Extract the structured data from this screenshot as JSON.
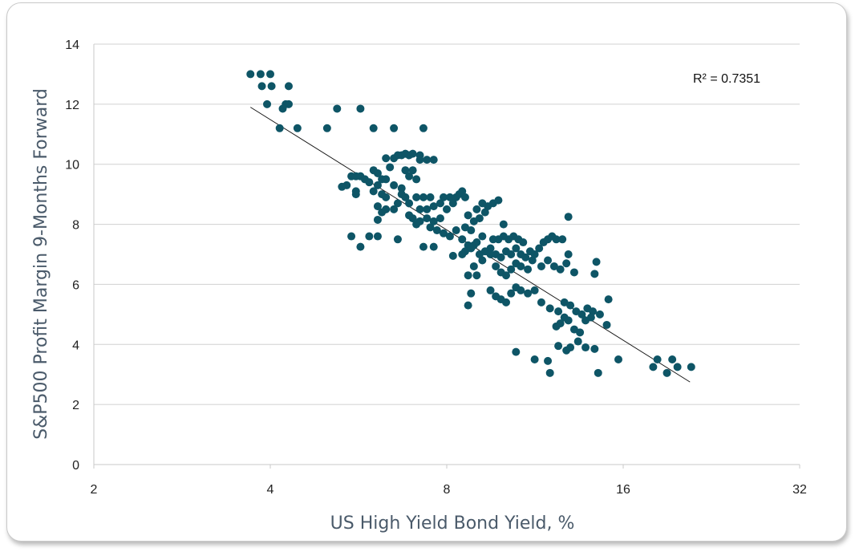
{
  "chart_data": {
    "type": "scatter",
    "xlabel": "US High Yield Bond Yield, %",
    "ylabel": "S&P500 Profit Margin 9-Months Forward",
    "x_scale": "log2",
    "xlim": [
      2,
      32
    ],
    "x_ticks": [
      2,
      4,
      8,
      16,
      32
    ],
    "x_tick_labels": [
      "2",
      "4",
      "8",
      "16",
      "32"
    ],
    "ylim": [
      0,
      14
    ],
    "y_ticks": [
      0,
      2,
      4,
      6,
      8,
      10,
      12,
      14
    ],
    "y_tick_labels": [
      "0",
      "2",
      "4",
      "6",
      "8",
      "10",
      "12",
      "14"
    ],
    "grid": "horizontal",
    "marker_color": "#0e5566",
    "trendline": {
      "x": [
        3.7,
        20.8
      ],
      "y": [
        11.9,
        2.75
      ]
    },
    "annotation": "R² = 0.7351",
    "points": [
      [
        3.7,
        13.0
      ],
      [
        3.85,
        13.0
      ],
      [
        4.0,
        13.0
      ],
      [
        3.87,
        12.6
      ],
      [
        4.02,
        12.6
      ],
      [
        4.3,
        12.6
      ],
      [
        3.95,
        12.0
      ],
      [
        4.25,
        12.0
      ],
      [
        4.3,
        12.0
      ],
      [
        4.2,
        11.85
      ],
      [
        4.15,
        11.2
      ],
      [
        4.45,
        11.2
      ],
      [
        5.0,
        11.2
      ],
      [
        5.2,
        11.85
      ],
      [
        5.7,
        11.85
      ],
      [
        6.0,
        11.2
      ],
      [
        6.5,
        11.2
      ],
      [
        7.3,
        11.2
      ],
      [
        5.5,
        9.6
      ],
      [
        5.6,
        9.6
      ],
      [
        5.7,
        9.6
      ],
      [
        5.8,
        9.5
      ],
      [
        5.9,
        9.4
      ],
      [
        5.4,
        9.3
      ],
      [
        5.3,
        9.25
      ],
      [
        5.6,
        9.0
      ],
      [
        5.6,
        9.1
      ],
      [
        6.0,
        9.8
      ],
      [
        6.1,
        9.7
      ],
      [
        6.2,
        9.5
      ],
      [
        6.3,
        10.2
      ],
      [
        6.5,
        10.2
      ],
      [
        6.6,
        10.3
      ],
      [
        6.7,
        10.3
      ],
      [
        6.8,
        10.35
      ],
      [
        6.9,
        10.3
      ],
      [
        7.0,
        10.35
      ],
      [
        7.2,
        10.3
      ],
      [
        7.4,
        10.15
      ],
      [
        7.6,
        10.15
      ],
      [
        7.2,
        10.15
      ],
      [
        6.4,
        9.9
      ],
      [
        6.8,
        9.8
      ],
      [
        7.0,
        9.8
      ],
      [
        6.9,
        9.6
      ],
      [
        7.1,
        9.5
      ],
      [
        6.3,
        9.5
      ],
      [
        6.5,
        9.3
      ],
      [
        6.7,
        9.2
      ],
      [
        6.1,
        9.3
      ],
      [
        6.0,
        9.1
      ],
      [
        6.2,
        9.0
      ],
      [
        6.3,
        8.9
      ],
      [
        6.1,
        8.6
      ],
      [
        6.3,
        8.5
      ],
      [
        6.2,
        8.4
      ],
      [
        6.5,
        8.5
      ],
      [
        6.6,
        8.7
      ],
      [
        6.7,
        9.0
      ],
      [
        6.8,
        8.9
      ],
      [
        6.9,
        8.7
      ],
      [
        7.1,
        8.9
      ],
      [
        7.3,
        8.9
      ],
      [
        7.5,
        8.9
      ],
      [
        7.2,
        8.5
      ],
      [
        7.4,
        8.5
      ],
      [
        7.6,
        8.6
      ],
      [
        7.8,
        8.7
      ],
      [
        7.9,
        8.9
      ],
      [
        8.1,
        8.9
      ],
      [
        8.3,
        8.9
      ],
      [
        8.4,
        9.0
      ],
      [
        8.5,
        9.1
      ],
      [
        8.6,
        8.9
      ],
      [
        8.2,
        8.7
      ],
      [
        8.0,
        8.5
      ],
      [
        7.8,
        8.2
      ],
      [
        7.6,
        8.1
      ],
      [
        7.4,
        8.2
      ],
      [
        7.2,
        8.1
      ],
      [
        7.0,
        8.2
      ],
      [
        6.9,
        8.3
      ],
      [
        7.1,
        8.0
      ],
      [
        7.5,
        7.9
      ],
      [
        7.7,
        7.8
      ],
      [
        7.9,
        7.7
      ],
      [
        8.1,
        7.6
      ],
      [
        8.3,
        7.8
      ],
      [
        8.5,
        7.5
      ],
      [
        8.7,
        7.3
      ],
      [
        8.6,
        7.1
      ],
      [
        8.5,
        7.0
      ],
      [
        8.8,
        7.2
      ],
      [
        8.9,
        7.3
      ],
      [
        9.1,
        7.0
      ],
      [
        9.3,
        7.1
      ],
      [
        9.5,
        7.2
      ],
      [
        9.7,
        7.0
      ],
      [
        9.9,
        6.9
      ],
      [
        10.1,
        7.1
      ],
      [
        10.3,
        7.0
      ],
      [
        10.5,
        7.2
      ],
      [
        10.7,
        7.0
      ],
      [
        10.9,
        6.9
      ],
      [
        11.1,
        7.1
      ],
      [
        11.3,
        7.0
      ],
      [
        11.5,
        7.2
      ],
      [
        11.7,
        7.4
      ],
      [
        11.9,
        7.5
      ],
      [
        12.1,
        7.6
      ],
      [
        12.3,
        7.5
      ],
      [
        12.6,
        7.5
      ],
      [
        12.9,
        7.0
      ],
      [
        10.2,
        7.5
      ],
      [
        10.4,
        7.6
      ],
      [
        10.6,
        7.5
      ],
      [
        10.8,
        7.4
      ],
      [
        10.0,
        7.6
      ],
      [
        9.8,
        7.5
      ],
      [
        9.6,
        7.5
      ],
      [
        9.2,
        7.6
      ],
      [
        9.0,
        7.4
      ],
      [
        8.8,
        7.8
      ],
      [
        8.6,
        7.9
      ],
      [
        8.9,
        8.1
      ],
      [
        9.1,
        8.2
      ],
      [
        9.3,
        8.4
      ],
      [
        9.4,
        8.6
      ],
      [
        9.6,
        8.7
      ],
      [
        9.8,
        8.8
      ],
      [
        9.2,
        8.7
      ],
      [
        9.0,
        8.5
      ],
      [
        8.7,
        8.3
      ],
      [
        10.0,
        8.0
      ],
      [
        12.9,
        8.25
      ],
      [
        6.1,
        8.15
      ],
      [
        5.5,
        7.6
      ],
      [
        5.9,
        7.6
      ],
      [
        6.1,
        7.6
      ],
      [
        5.7,
        7.25
      ],
      [
        6.6,
        7.5
      ],
      [
        7.3,
        7.25
      ],
      [
        7.6,
        7.25
      ],
      [
        8.2,
        6.95
      ],
      [
        8.7,
        6.3
      ],
      [
        9.0,
        6.3
      ],
      [
        8.9,
        6.6
      ],
      [
        9.2,
        6.8
      ],
      [
        9.5,
        7.0
      ],
      [
        9.7,
        6.6
      ],
      [
        9.9,
        6.4
      ],
      [
        10.1,
        6.3
      ],
      [
        10.3,
        6.5
      ],
      [
        10.5,
        6.7
      ],
      [
        10.7,
        6.6
      ],
      [
        11.0,
        6.5
      ],
      [
        11.2,
        6.8
      ],
      [
        11.6,
        6.6
      ],
      [
        11.9,
        6.8
      ],
      [
        12.2,
        6.6
      ],
      [
        12.5,
        6.5
      ],
      [
        12.8,
        6.7
      ],
      [
        13.2,
        6.4
      ],
      [
        14.3,
        6.35
      ],
      [
        14.4,
        6.75
      ],
      [
        8.8,
        5.7
      ],
      [
        8.7,
        5.3
      ],
      [
        9.5,
        5.8
      ],
      [
        9.7,
        5.6
      ],
      [
        9.9,
        5.5
      ],
      [
        10.1,
        5.4
      ],
      [
        10.3,
        5.7
      ],
      [
        10.5,
        5.9
      ],
      [
        10.7,
        5.8
      ],
      [
        11.0,
        5.7
      ],
      [
        11.3,
        5.8
      ],
      [
        11.6,
        5.4
      ],
      [
        12.0,
        5.2
      ],
      [
        12.4,
        5.1
      ],
      [
        12.7,
        5.4
      ],
      [
        13.0,
        5.3
      ],
      [
        13.3,
        5.1
      ],
      [
        13.6,
        5.0
      ],
      [
        13.9,
        5.2
      ],
      [
        14.2,
        5.1
      ],
      [
        14.6,
        5.0
      ],
      [
        15.1,
        5.5
      ],
      [
        15.0,
        4.65
      ],
      [
        12.3,
        4.6
      ],
      [
        12.5,
        4.7
      ],
      [
        12.7,
        4.9
      ],
      [
        12.9,
        4.8
      ],
      [
        13.2,
        4.5
      ],
      [
        13.5,
        4.4
      ],
      [
        13.8,
        4.8
      ],
      [
        14.1,
        4.9
      ],
      [
        12.4,
        3.95
      ],
      [
        12.8,
        3.8
      ],
      [
        13.0,
        3.9
      ],
      [
        13.4,
        4.1
      ],
      [
        13.8,
        3.9
      ],
      [
        14.3,
        3.85
      ],
      [
        10.5,
        3.75
      ],
      [
        11.3,
        3.5
      ],
      [
        11.9,
        3.45
      ],
      [
        12.0,
        3.05
      ],
      [
        14.5,
        3.05
      ],
      [
        15.7,
        3.5
      ],
      [
        18.0,
        3.25
      ],
      [
        18.3,
        3.5
      ],
      [
        19.0,
        3.05
      ],
      [
        19.4,
        3.5
      ],
      [
        19.8,
        3.25
      ],
      [
        20.9,
        3.25
      ]
    ]
  }
}
